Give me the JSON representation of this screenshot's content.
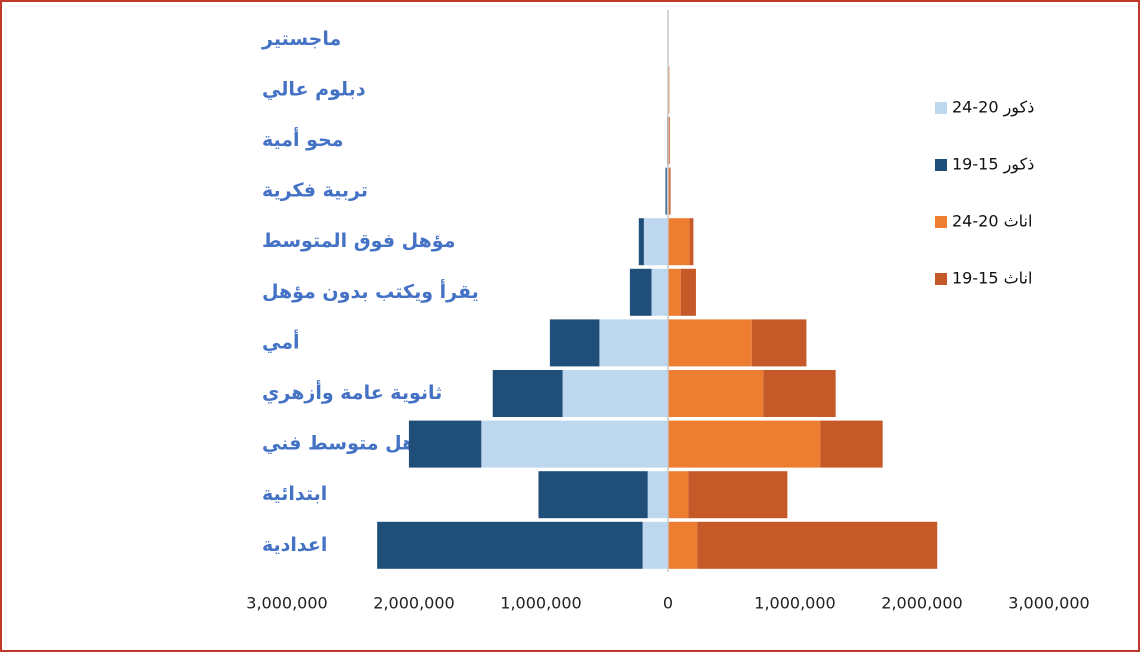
{
  "chart_data": {
    "type": "bar",
    "orientation": "horizontal",
    "stacked": true,
    "categories": [
      "ماجستير",
      "دبلوم عالي",
      "محو أمية",
      "تربية فكرية",
      "مؤهل فوق المتوسط",
      "يقرأ ويكتب بدون مؤهل",
      "أمي",
      "ثانوية عامة وأزهري",
      "مؤهل متوسط فني",
      "ابتدائية",
      "اعدادية"
    ],
    "series": [
      {
        "name": "24-20 ذكور",
        "color": "#bdd7ee",
        "values": [
          0,
          -2000,
          -5000,
          -10000,
          -190000,
          -130000,
          -540000,
          -830000,
          -1470000,
          -160000,
          -200000
        ]
      },
      {
        "name": "19-15 ذكور",
        "color": "#1f4e79",
        "values": [
          0,
          0,
          -3000,
          -10000,
          -40000,
          -170000,
          -390000,
          -550000,
          -570000,
          -860000,
          -2090000
        ]
      },
      {
        "name": "24-20 اناث",
        "color": "#ed7d31",
        "values": [
          0,
          8000,
          10000,
          10000,
          170000,
          100000,
          660000,
          750000,
          1200000,
          160000,
          230000
        ]
      },
      {
        "name": "19-15 اناث",
        "color": "#c55a28",
        "values": [
          0,
          2000,
          5000,
          10000,
          30000,
          120000,
          430000,
          570000,
          490000,
          780000,
          1890000
        ]
      }
    ],
    "xlim": [
      -3000000,
      3000000
    ],
    "xticks": [
      {
        "value": -3000000,
        "label": "3,000,000"
      },
      {
        "value": -2000000,
        "label": "2,000,000"
      },
      {
        "value": -1000000,
        "label": "1,000,000"
      },
      0,
      {
        "value": 1000000,
        "label": "1,000,000"
      },
      {
        "value": 2000000,
        "label": "2,000,000"
      },
      {
        "value": 3000000,
        "label": "3,000,000"
      }
    ],
    "legend": "right"
  }
}
